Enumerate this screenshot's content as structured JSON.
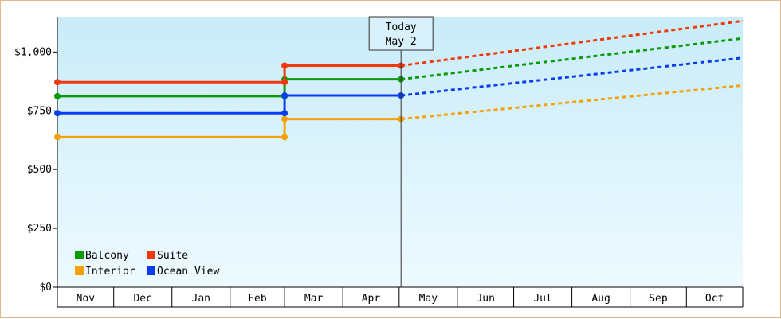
{
  "chart_data": {
    "type": "line",
    "style": "step",
    "ylim": [
      0,
      1150
    ],
    "y_ticks": [
      0,
      250,
      500,
      750,
      1000
    ],
    "y_tick_labels": [
      "$0",
      "$250",
      "$500",
      "$750",
      "$1,000"
    ],
    "months": [
      "Nov",
      "Dec",
      "Jan",
      "Feb",
      "Mar",
      "Apr",
      "May",
      "Jun",
      "Jul",
      "Aug",
      "Sep",
      "Oct"
    ],
    "x_start": "2023-11-01",
    "x_end": "2024-10-31",
    "today": {
      "label": "Today",
      "date_label": "May 2",
      "date": "2024-05-02"
    },
    "grid": false,
    "background": {
      "top": "#c9ecf8",
      "bottom": "#eefaff"
    },
    "series": [
      {
        "name": "Balcony",
        "color": "#0a9a0a",
        "points": [
          {
            "date": "2023-11-01",
            "value": 812
          },
          {
            "date": "2024-03-01",
            "value": 812
          },
          {
            "date": "2024-03-01",
            "value": 884
          },
          {
            "date": "2024-05-02",
            "value": 884
          }
        ],
        "forecast_end": {
          "date": "2024-10-31",
          "value": 1058
        }
      },
      {
        "name": "Suite",
        "color": "#f0380a",
        "points": [
          {
            "date": "2023-11-01",
            "value": 872
          },
          {
            "date": "2024-03-01",
            "value": 872
          },
          {
            "date": "2024-03-01",
            "value": 942
          },
          {
            "date": "2024-05-02",
            "value": 942
          }
        ],
        "forecast_end": {
          "date": "2024-10-31",
          "value": 1132
        }
      },
      {
        "name": "Interior",
        "color": "#f5a10a",
        "points": [
          {
            "date": "2023-11-01",
            "value": 638
          },
          {
            "date": "2024-03-01",
            "value": 638
          },
          {
            "date": "2024-03-01",
            "value": 715
          },
          {
            "date": "2024-05-02",
            "value": 715
          }
        ],
        "forecast_end": {
          "date": "2024-10-31",
          "value": 858
        }
      },
      {
        "name": "Ocean View",
        "color": "#0a3cf0",
        "points": [
          {
            "date": "2023-11-01",
            "value": 740
          },
          {
            "date": "2024-03-01",
            "value": 740
          },
          {
            "date": "2024-03-01",
            "value": 815
          },
          {
            "date": "2024-05-02",
            "value": 815
          }
        ],
        "forecast_end": {
          "date": "2024-10-31",
          "value": 975
        }
      }
    ],
    "legend": {
      "placement": "bottom-left",
      "order": [
        "Balcony",
        "Suite",
        "Interior",
        "Ocean View"
      ]
    }
  }
}
